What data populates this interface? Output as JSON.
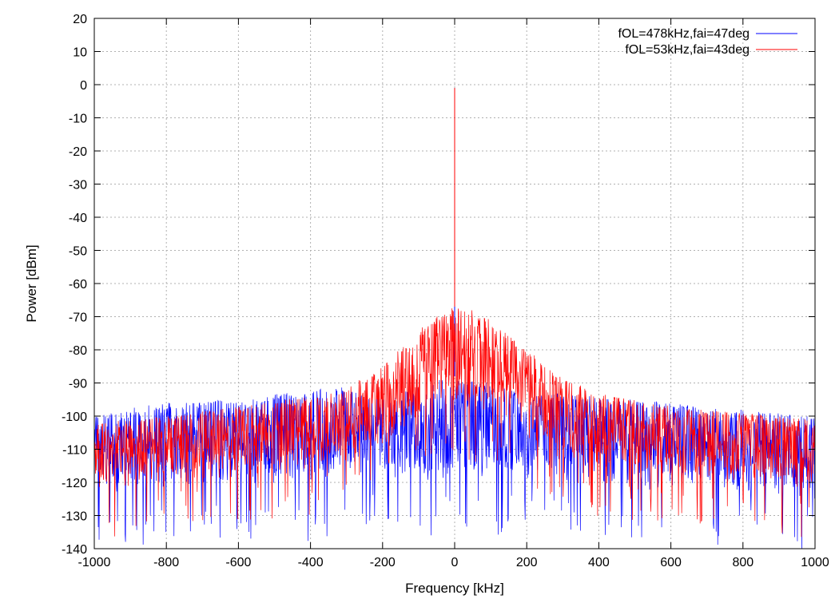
{
  "chart_data": {
    "type": "line",
    "title": "",
    "xlabel": "Frequency [kHz]",
    "ylabel": "Power [dBm]",
    "xlim": [
      -1000,
      1000
    ],
    "ylim": [
      -140,
      20
    ],
    "xticks": [
      -1000,
      -800,
      -600,
      -400,
      -200,
      0,
      200,
      400,
      600,
      800,
      1000
    ],
    "yticks": [
      20,
      10,
      0,
      -10,
      -20,
      -30,
      -40,
      -50,
      -60,
      -70,
      -80,
      -90,
      -100,
      -110,
      -120,
      -130,
      -140
    ],
    "grid": true,
    "legend_position": "top-right",
    "series": [
      {
        "name": "fOL=478kHz,fai=47deg",
        "color": "#0000ff",
        "peak": {
          "x": 0,
          "y": -1
        },
        "envelope": {
          "x": [
            -1000,
            -800,
            -600,
            -400,
            -300,
            -200,
            -100,
            -50,
            0,
            50,
            100,
            200,
            300,
            400,
            600,
            800,
            1000
          ],
          "upper": [
            -99,
            -96,
            -95,
            -92,
            -91,
            -95,
            -91,
            -89,
            -88,
            -88,
            -90,
            -94,
            -93,
            -94,
            -96,
            -98,
            -100
          ],
          "lower": [
            -128,
            -127,
            -126,
            -126,
            -125,
            -122,
            -124,
            -125,
            -123,
            -124,
            -125,
            -123,
            -125,
            -126,
            -127,
            -128,
            -130
          ]
        }
      },
      {
        "name": "fOL=53kHz,fai=43deg",
        "color": "#ff0000",
        "peak": {
          "x": 0,
          "y": -1
        },
        "envelope": {
          "x": [
            -1000,
            -800,
            -600,
            -400,
            -300,
            -200,
            -100,
            -50,
            0,
            50,
            100,
            200,
            300,
            400,
            600,
            800,
            1000
          ],
          "upper": [
            -102,
            -100,
            -97,
            -94,
            -91,
            -85,
            -74,
            -70,
            -67,
            -68,
            -71,
            -80,
            -88,
            -93,
            -97,
            -99,
            -101
          ],
          "lower": [
            -125,
            -123,
            -121,
            -119,
            -117,
            -113,
            -106,
            -103,
            -102,
            -103,
            -106,
            -113,
            -117,
            -119,
            -121,
            -123,
            -125
          ]
        }
      }
    ]
  }
}
